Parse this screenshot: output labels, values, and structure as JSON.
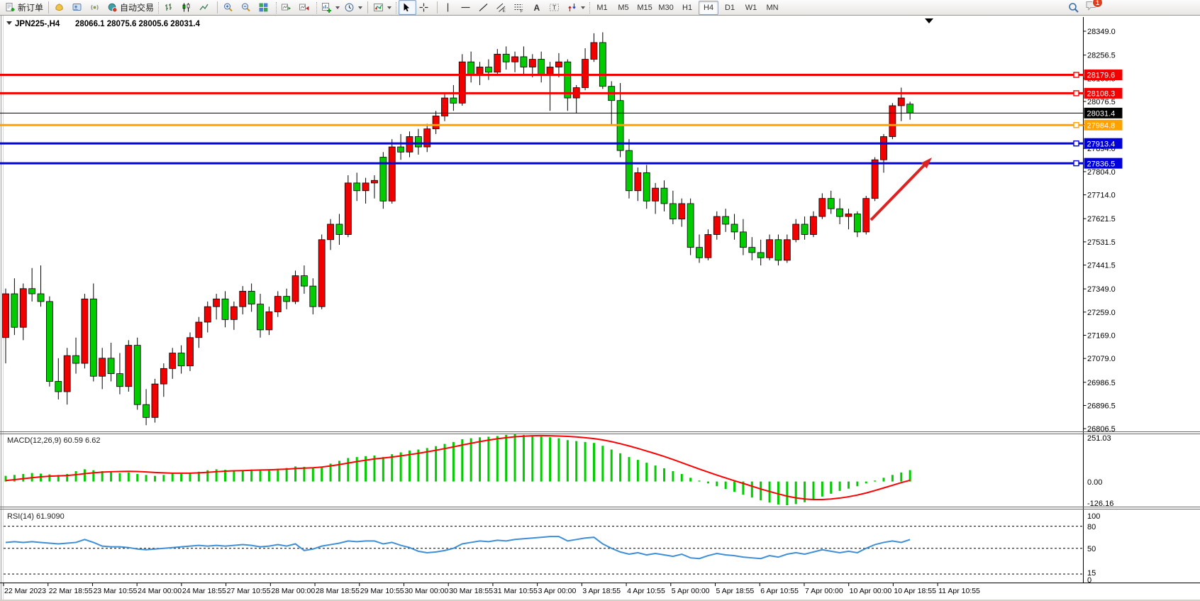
{
  "toolbar": {
    "new_order": "新订单",
    "autotrading": "自动交易",
    "timeframes": [
      "M1",
      "M5",
      "M15",
      "M30",
      "H1",
      "H4",
      "D1",
      "W1",
      "MN"
    ],
    "active_timeframe": "H4",
    "badge_count": "1"
  },
  "chart": {
    "symbol_period": "JPN225-,H4",
    "ohlc_line": "28066.1 28075.6 28005.6 28031.4",
    "price_axis_ticks": [
      "28349.0",
      "28256.5",
      "28166.5",
      "28076.5",
      "27986.5",
      "27894.0",
      "27804.0",
      "27714.0",
      "27621.5",
      "27531.5",
      "27441.5",
      "27349.0",
      "27259.0",
      "27169.0",
      "27079.0",
      "26986.5",
      "26896.5",
      "26806.5"
    ],
    "hlines": [
      {
        "price": 28179.6,
        "label": "28179.6",
        "color": "#f20000"
      },
      {
        "price": 28108.3,
        "label": "28108.3",
        "color": "#f20000"
      },
      {
        "price": 27984.8,
        "label": "27984.8",
        "color": "#ffa200"
      },
      {
        "price": 27913.4,
        "label": "27913.4",
        "color": "#0000dd"
      },
      {
        "price": 27836.5,
        "label": "27836.5",
        "color": "#0000dd"
      }
    ],
    "current_price": {
      "price": 28031.4,
      "label": "28031.4",
      "color": "#000000"
    },
    "macd": {
      "label": "MACD(12,26,9) 60.59 6.62",
      "axis": [
        "251.03",
        "0.00",
        "-126.16"
      ]
    },
    "rsi": {
      "label": "RSI(14) 61.9090",
      "axis": [
        "100",
        "80",
        "50",
        "15",
        "0"
      ]
    }
  },
  "chart_data": {
    "type": "candlestick",
    "title": "JPN225-,H4",
    "ylim_main": [
      26806.5,
      28349.0
    ],
    "macd_ylim": [
      -126.16,
      251.03
    ],
    "rsi_ylim": [
      0,
      100
    ],
    "rsi_levels": [
      80,
      50,
      15
    ],
    "colors": {
      "bull": "#f20000",
      "bear": "#00cc00",
      "wick": "#000000",
      "macd_hist": "#00cc00",
      "macd_signal": "#ff0000",
      "rsi_line": "#3f8fd8",
      "arrow": "#dd2222"
    },
    "x_labels": [
      "22 Mar 2023",
      "22 Mar 18:55",
      "23 Mar 10:55",
      "24 Mar 00:00",
      "24 Mar 18:55",
      "27 Mar 10:55",
      "28 Mar 00:00",
      "28 Mar 18:55",
      "29 Mar 10:55",
      "30 Mar 00:00",
      "30 Mar 18:55",
      "31 Mar 10:55",
      "3 Apr 00:00",
      "3 Apr 18:55",
      "4 Apr 10:55",
      "5 Apr 00:00",
      "5 Apr 18:55",
      "6 Apr 10:55",
      "7 Apr 00:00",
      "10 Apr 00:00",
      "10 Apr 18:55",
      "11 Apr 10:55"
    ],
    "ohlc": [
      [
        27160,
        27350,
        27060,
        27330
      ],
      [
        27330,
        27390,
        27170,
        27200
      ],
      [
        27200,
        27370,
        27150,
        27350
      ],
      [
        27350,
        27430,
        27300,
        27330
      ],
      [
        27330,
        27440,
        27280,
        27300
      ],
      [
        27300,
        27320,
        26970,
        26990
      ],
      [
        26990,
        27080,
        26920,
        26950
      ],
      [
        26950,
        27120,
        26900,
        27090
      ],
      [
        27090,
        27160,
        27020,
        27060
      ],
      [
        27060,
        27330,
        27040,
        27310
      ],
      [
        27310,
        27370,
        26990,
        27010
      ],
      [
        27010,
        27120,
        26960,
        27080
      ],
      [
        27080,
        27140,
        26990,
        27020
      ],
      [
        27020,
        27100,
        26940,
        26970
      ],
      [
        26970,
        27150,
        26950,
        27130
      ],
      [
        27130,
        27160,
        26880,
        26900
      ],
      [
        26900,
        26960,
        26820,
        26850
      ],
      [
        26850,
        27000,
        26830,
        26980
      ],
      [
        26980,
        27060,
        26930,
        27040
      ],
      [
        27040,
        27120,
        27000,
        27100
      ],
      [
        27100,
        27130,
        27020,
        27050
      ],
      [
        27050,
        27180,
        27030,
        27160
      ],
      [
        27160,
        27240,
        27120,
        27220
      ],
      [
        27220,
        27300,
        27180,
        27280
      ],
      [
        27280,
        27330,
        27230,
        27310
      ],
      [
        27310,
        27340,
        27200,
        27230
      ],
      [
        27230,
        27300,
        27190,
        27280
      ],
      [
        27280,
        27360,
        27250,
        27340
      ],
      [
        27340,
        27370,
        27260,
        27290
      ],
      [
        27290,
        27330,
        27160,
        27190
      ],
      [
        27190,
        27280,
        27170,
        27260
      ],
      [
        27260,
        27340,
        27240,
        27320
      ],
      [
        27320,
        27350,
        27270,
        27300
      ],
      [
        27300,
        27420,
        27290,
        27400
      ],
      [
        27400,
        27440,
        27330,
        27360
      ],
      [
        27360,
        27390,
        27250,
        27280
      ],
      [
        27280,
        27560,
        27270,
        27540
      ],
      [
        27540,
        27620,
        27500,
        27600
      ],
      [
        27600,
        27640,
        27520,
        27560
      ],
      [
        27560,
        27790,
        27550,
        27760
      ],
      [
        27760,
        27800,
        27690,
        27730
      ],
      [
        27730,
        27780,
        27680,
        27760
      ],
      [
        27760,
        27790,
        27700,
        27770
      ],
      [
        27860,
        27880,
        27660,
        27690
      ],
      [
        27690,
        27930,
        27680,
        27900
      ],
      [
        27900,
        27950,
        27850,
        27880
      ],
      [
        27880,
        27960,
        27860,
        27940
      ],
      [
        27940,
        27970,
        27870,
        27900
      ],
      [
        27900,
        27990,
        27880,
        27970
      ],
      [
        27970,
        28040,
        27950,
        28020
      ],
      [
        28020,
        28110,
        28000,
        28090
      ],
      [
        28090,
        28140,
        28040,
        28070
      ],
      [
        28070,
        28260,
        28060,
        28230
      ],
      [
        28230,
        28270,
        28150,
        28180
      ],
      [
        28180,
        28230,
        28140,
        28210
      ],
      [
        28210,
        28240,
        28160,
        28190
      ],
      [
        28190,
        28280,
        28180,
        28260
      ],
      [
        28260,
        28290,
        28200,
        28230
      ],
      [
        28230,
        28270,
        28190,
        28250
      ],
      [
        28250,
        28290,
        28180,
        28210
      ],
      [
        28210,
        28260,
        28170,
        28240
      ],
      [
        28240,
        28270,
        28150,
        28180
      ],
      [
        28180,
        28230,
        28040,
        28210
      ],
      [
        28210,
        28264,
        28170,
        28230
      ],
      [
        28230,
        28240,
        28040,
        28090
      ],
      [
        28090,
        28140,
        28030,
        28130
      ],
      [
        28130,
        28283,
        28120,
        28240
      ],
      [
        28240,
        28341,
        28230,
        28305
      ],
      [
        28305,
        28345,
        28125,
        28135
      ],
      [
        28135,
        28155,
        27985,
        28080
      ],
      [
        28080,
        28148,
        27860,
        27886
      ],
      [
        27886,
        27930,
        27700,
        27730
      ],
      [
        27730,
        27820,
        27690,
        27800
      ],
      [
        27800,
        27830,
        27660,
        27690
      ],
      [
        27690,
        27760,
        27640,
        27740
      ],
      [
        27740,
        27770,
        27650,
        27680
      ],
      [
        27680,
        27730,
        27600,
        27620
      ],
      [
        27620,
        27700,
        27590,
        27680
      ],
      [
        27680,
        27700,
        27480,
        27510
      ],
      [
        27510,
        27560,
        27450,
        27470
      ],
      [
        27470,
        27580,
        27460,
        27560
      ],
      [
        27560,
        27650,
        27540,
        27630
      ],
      [
        27630,
        27660,
        27570,
        27600
      ],
      [
        27600,
        27640,
        27540,
        27570
      ],
      [
        27570,
        27620,
        27480,
        27510
      ],
      [
        27510,
        27550,
        27460,
        27490
      ],
      [
        27490,
        27540,
        27440,
        27470
      ],
      [
        27470,
        27560,
        27460,
        27540
      ],
      [
        27540,
        27560,
        27440,
        27460
      ],
      [
        27460,
        27560,
        27450,
        27540
      ],
      [
        27540,
        27620,
        27530,
        27600
      ],
      [
        27600,
        27630,
        27540,
        27560
      ],
      [
        27560,
        27650,
        27550,
        27630
      ],
      [
        27630,
        27720,
        27620,
        27700
      ],
      [
        27700,
        27730,
        27640,
        27660
      ],
      [
        27660,
        27700,
        27600,
        27630
      ],
      [
        27630,
        27660,
        27580,
        27640
      ],
      [
        27640,
        27650,
        27550,
        27570
      ],
      [
        27570,
        27710,
        27560,
        27700
      ],
      [
        27700,
        27860,
        27690,
        27850
      ],
      [
        27850,
        27950,
        27800,
        27940
      ],
      [
        27940,
        28070,
        27930,
        28060
      ],
      [
        28060,
        28130,
        28000,
        28090
      ],
      [
        28066.1,
        28075.6,
        28005.6,
        28031.4
      ]
    ],
    "series": [
      {
        "name": "MACD histogram",
        "values": [
          30,
          35,
          40,
          45,
          42,
          38,
          35,
          40,
          55,
          65,
          60,
          55,
          50,
          45,
          48,
          40,
          35,
          30,
          35,
          42,
          40,
          45,
          52,
          60,
          65,
          62,
          58,
          60,
          64,
          60,
          62,
          68,
          72,
          80,
          78,
          72,
          78,
          95,
          110,
          125,
          130,
          135,
          138,
          130,
          145,
          155,
          165,
          170,
          178,
          188,
          200,
          210,
          225,
          230,
          235,
          238,
          242,
          248,
          251,
          248,
          244,
          240,
          235,
          230,
          220,
          215,
          210,
          205,
          190,
          170,
          150,
          130,
          115,
          100,
          85,
          70,
          55,
          40,
          20,
          5,
          -10,
          -25,
          -40,
          -55,
          -70,
          -85,
          -100,
          -112,
          -122,
          -126,
          -120,
          -110,
          -95,
          -80,
          -65,
          -50,
          -38,
          -25,
          -10,
          5,
          20,
          35,
          48,
          60.59
        ]
      },
      {
        "name": "MACD signal",
        "values": [
          5,
          10,
          15,
          20,
          25,
          28,
          30,
          32,
          36,
          42,
          46,
          50,
          52,
          53,
          54,
          53,
          51,
          48,
          46,
          44,
          44,
          44,
          46,
          49,
          52,
          55,
          57,
          58,
          60,
          61,
          62,
          64,
          66,
          69,
          71,
          73,
          77,
          83,
          90,
          98,
          106,
          113,
          120,
          125,
          130,
          136,
          143,
          150,
          158,
          166,
          175,
          184,
          194,
          203,
          212,
          220,
          227,
          233,
          238,
          241,
          243,
          244,
          243,
          242,
          240,
          237,
          233,
          228,
          221,
          212,
          201,
          189,
          176,
          162,
          148,
          133,
          117,
          100,
          83,
          66,
          50,
          34,
          19,
          4,
          -10,
          -25,
          -40,
          -53,
          -66,
          -78,
          -87,
          -93,
          -96,
          -96,
          -93,
          -88,
          -81,
          -72,
          -61,
          -48,
          -34,
          -20,
          -6,
          6.62
        ]
      },
      {
        "name": "RSI(14)",
        "values": [
          58,
          59,
          58,
          59,
          58,
          57,
          56,
          57,
          58,
          62,
          58,
          53,
          52,
          52,
          51,
          49,
          48,
          49,
          50,
          51,
          52,
          53,
          54,
          53,
          54,
          53,
          54,
          55,
          54,
          52,
          53,
          55,
          53,
          56,
          47,
          49,
          53,
          55,
          57,
          60,
          59,
          60,
          60,
          56,
          58,
          54,
          51,
          46,
          44,
          45,
          47,
          50,
          56,
          58,
          60,
          59,
          61,
          60,
          62,
          63,
          64,
          65,
          66,
          66,
          60,
          62,
          64,
          65,
          56,
          50,
          45,
          42,
          44,
          41,
          43,
          41,
          39,
          42,
          37,
          36,
          40,
          43,
          41,
          40,
          38,
          37,
          36,
          40,
          38,
          42,
          44,
          42,
          45,
          48,
          46,
          44,
          46,
          44,
          50,
          55,
          58,
          60,
          58,
          61.9
        ]
      }
    ]
  }
}
